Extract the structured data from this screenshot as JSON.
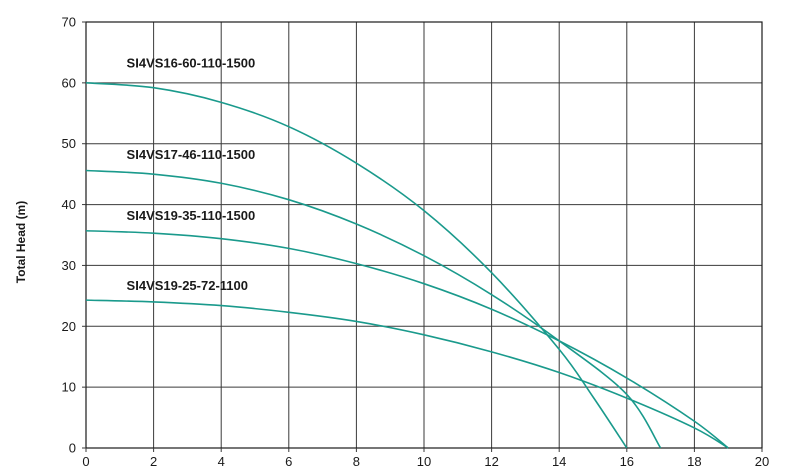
{
  "chart_data": {
    "type": "line",
    "title": "",
    "xlabel": "",
    "ylabel": "Total Head (m)",
    "xlim": [
      0,
      20
    ],
    "ylim": [
      0,
      70
    ],
    "xticks": [
      0,
      2,
      4,
      6,
      8,
      10,
      12,
      14,
      16,
      18,
      20
    ],
    "yticks": [
      0,
      10,
      20,
      30,
      40,
      50,
      60,
      70
    ],
    "grid": true,
    "legend": "none",
    "line_color": "#1a9a8c",
    "series": [
      {
        "name": "SI4VS16-60-110-1500",
        "label_at": [
          1.2,
          62.5
        ],
        "x": [
          0,
          2,
          4,
          6,
          8,
          10,
          12,
          14,
          15,
          16
        ],
        "y": [
          60,
          59.2,
          56.8,
          52.8,
          46.8,
          39,
          28.8,
          16.2,
          8.4,
          0
        ]
      },
      {
        "name": "SI4VS17-46-110-1500",
        "label_at": [
          1.2,
          47.5
        ],
        "x": [
          0,
          2,
          4,
          6,
          8,
          10,
          12,
          14,
          16,
          17
        ],
        "y": [
          45.6,
          45,
          43.5,
          40.8,
          36.8,
          31.6,
          25.2,
          17.6,
          8.8,
          0
        ]
      },
      {
        "name": "SI4VS19-35-110-1500",
        "label_at": [
          1.2,
          37.5
        ],
        "x": [
          0,
          2,
          4,
          6,
          8,
          10,
          12,
          14,
          16,
          18,
          19
        ],
        "y": [
          35.7,
          35.3,
          34.4,
          32.8,
          30.3,
          27,
          22.8,
          17.6,
          11.5,
          4.4,
          0
        ]
      },
      {
        "name": "SI4VS19-25-72-1100",
        "label_at": [
          1.2,
          26
        ],
        "x": [
          0,
          2,
          4,
          6,
          8,
          10,
          12,
          14,
          16,
          18,
          19
        ],
        "y": [
          24.3,
          24,
          23.4,
          22.3,
          20.8,
          18.6,
          15.8,
          12.4,
          8.2,
          3.3,
          0
        ]
      }
    ]
  }
}
